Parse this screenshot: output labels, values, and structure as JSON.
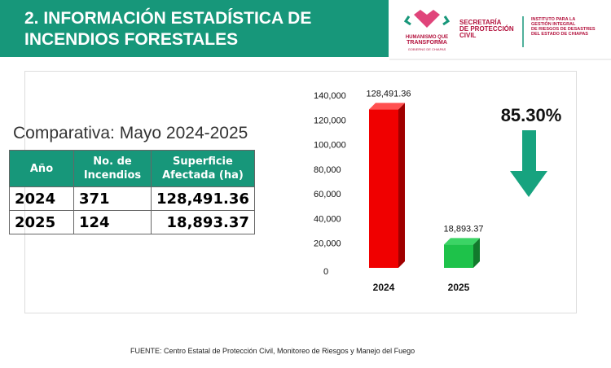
{
  "header": {
    "title_line1": "2. INFORMACIÓN ESTADÍSTICA DE",
    "title_line2": "INCENDIOS FORESTALES"
  },
  "logos": {
    "gov": "HUMANISMO QUE TRANSFORMA · GOBIERNO DE CHIAPAS",
    "secretaria": [
      "SECRETARÍA",
      "DE PROTECCIÓN",
      "CIVIL"
    ],
    "instituto": [
      "INSTITUTO PARA LA",
      "GESTIÓN INTEGRAL",
      "DE RIESGOS DE DESASTRES",
      "DEL ESTADO DE CHIAPAS"
    ]
  },
  "subtitle": "Comparativa: Mayo 2024-2025",
  "table": {
    "headers": [
      "Año",
      "No. de Incendios",
      "Superficie Afectada (ha)"
    ],
    "rows": [
      [
        "2024",
        "371",
        "128,491.36"
      ],
      [
        "2025",
        "124",
        "18,893.37"
      ]
    ]
  },
  "chart_data": {
    "type": "bar",
    "categories": [
      "2024",
      "2025"
    ],
    "values": [
      128491.36,
      18893.37
    ],
    "data_labels": [
      "128,491.36",
      "18,893.37"
    ],
    "ylim": [
      0,
      140000
    ],
    "yticks": [
      "0",
      "20,000",
      "40,000",
      "60,000",
      "80,000",
      "100,000",
      "120,000",
      "140,000"
    ],
    "colors": [
      "#f00000",
      "#1ec24a"
    ],
    "annotation": "85.30%",
    "arrow_color": "#17a37f",
    "grid": false
  },
  "source": "FUENTE: Centro Estatal de Protección Civil, Monitoreo de Riesgos y Manejo del Fuego"
}
